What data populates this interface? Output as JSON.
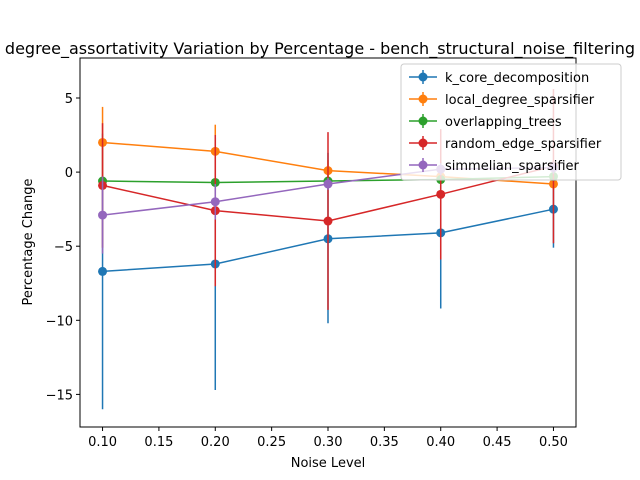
{
  "chart_data": {
    "type": "line",
    "title": "degree_assortativity Variation by Percentage - bench_structural_noise_filtering",
    "xlabel": "Noise Level",
    "ylabel": "Percentage Change",
    "xlim": [
      0.08,
      0.52
    ],
    "ylim": [
      -17.2,
      7.7
    ],
    "x": [
      0.1,
      0.2,
      0.3,
      0.4,
      0.5
    ],
    "x_ticks": [
      "0.10",
      "0.15",
      "0.20",
      "0.25",
      "0.30",
      "0.35",
      "0.40",
      "0.45",
      "0.50"
    ],
    "y_ticks": [
      "−15",
      "−10",
      "−5",
      "0",
      "5"
    ],
    "legend_position": "top-right",
    "grid": false,
    "series": [
      {
        "name": "k_core_decomposition",
        "color": "#1f77b4",
        "values": [
          -6.7,
          -6.2,
          -4.5,
          -4.1,
          -2.5
        ],
        "err_low": [
          -16.0,
          -14.7,
          -10.2,
          -9.2,
          -5.1
        ],
        "err_high": [
          2.6,
          2.3,
          1.3,
          1.0,
          0.1
        ]
      },
      {
        "name": "local_degree_sparsifier",
        "color": "#ff7f0e",
        "values": [
          2.0,
          1.4,
          0.1,
          -0.3,
          -0.8
        ],
        "err_low": [
          -0.3,
          -0.4,
          -0.6,
          -0.6,
          -1.2
        ],
        "err_high": [
          4.4,
          3.2,
          0.8,
          0.0,
          -0.4
        ]
      },
      {
        "name": "overlapping_trees",
        "color": "#2ca02c",
        "values": [
          -0.6,
          -0.7,
          -0.6,
          -0.5,
          -0.3
        ],
        "err_low": [
          -0.8,
          -0.9,
          -0.8,
          -0.7,
          -0.5
        ],
        "err_high": [
          -0.4,
          -0.5,
          -0.4,
          -0.3,
          -0.1
        ]
      },
      {
        "name": "random_edge_sparsifier",
        "color": "#d62728",
        "values": [
          -0.9,
          -2.6,
          -3.3,
          -1.5,
          0.4
        ],
        "err_low": [
          -5.1,
          -7.7,
          -9.3,
          -5.9,
          -4.8
        ],
        "err_high": [
          3.3,
          2.5,
          2.7,
          2.9,
          5.6
        ]
      },
      {
        "name": "simmelian_sparsifier",
        "color": "#9467bd",
        "values": [
          -2.9,
          -2.0,
          -0.8,
          0.2,
          0.3
        ],
        "err_low": [
          -5.5,
          -3.2,
          -1.2,
          -0.2,
          -0.1
        ],
        "err_high": [
          -0.3,
          -0.8,
          -0.4,
          0.6,
          0.7
        ]
      }
    ]
  }
}
